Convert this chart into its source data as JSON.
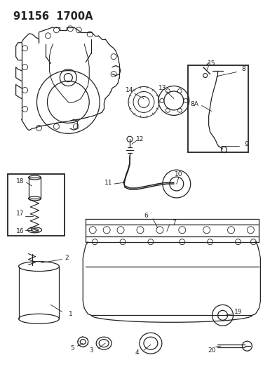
{
  "title": "91156  1700A",
  "bg_color": "#ffffff",
  "fig_width": 3.85,
  "fig_height": 5.33,
  "dpi": 100,
  "lw": 0.9,
  "gray": "#222222",
  "fs_label": 6.0,
  "fs_title": 10.5
}
